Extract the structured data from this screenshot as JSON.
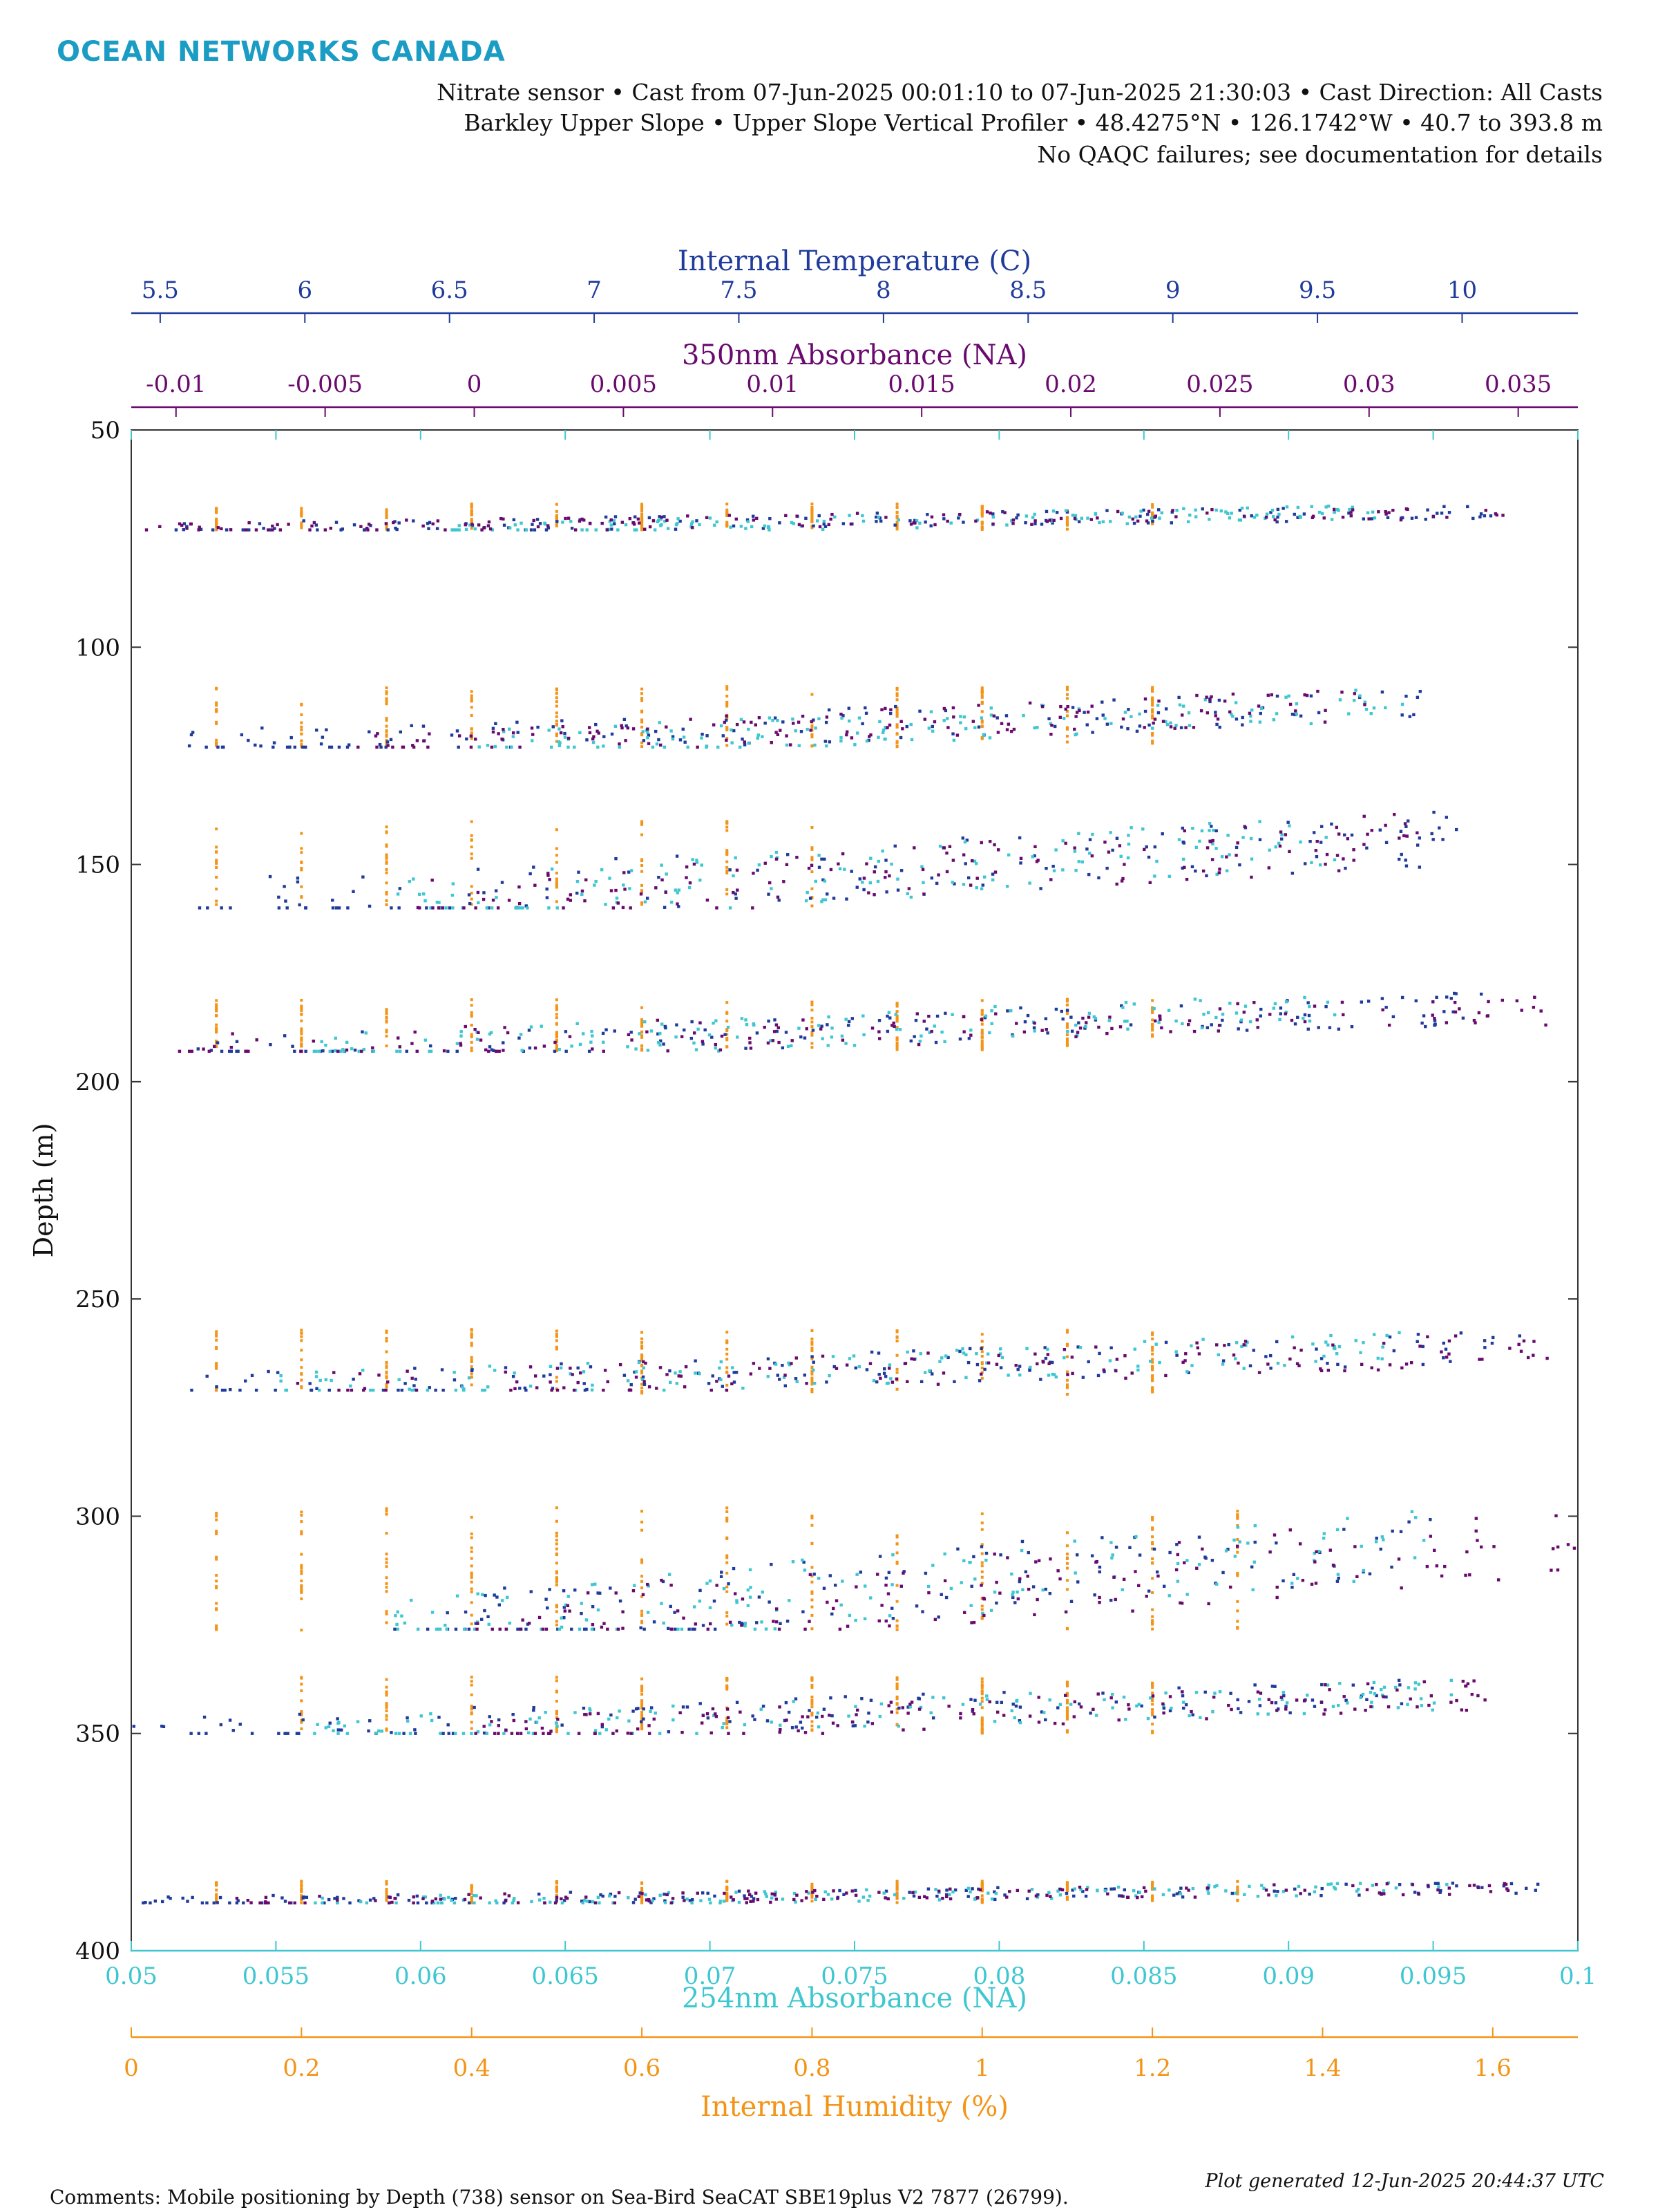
{
  "header": {
    "brand": "OCEAN NETWORKS CANADA",
    "line1": "Nitrate sensor • Cast from 07-Jun-2025 00:01:10 to 07-Jun-2025 21:30:03 • Cast Direction: All Casts",
    "line2": "Barkley Upper Slope • Upper Slope Vertical Profiler • 48.4275°N • 126.1742°W • 40.7 to 393.8 m",
    "line3": "No QAQC failures; see documentation for details"
  },
  "footer": {
    "comment": "Comments: Mobile positioning by Depth (738) sensor on Sea-Bird SeaCAT SBE19plus V2 7877 (26799).",
    "generated": "Plot generated 12-Jun-2025 20:44:37 UTC"
  },
  "colors": {
    "temperature": "#1f3b9b",
    "abs350": "#6a0a6e",
    "abs254": "#3ec7d1",
    "humidity": "#f39417",
    "axis": "#333333"
  },
  "chart_data": {
    "type": "scatter",
    "ylabel": "Depth (m)",
    "ylim": [
      50,
      400
    ],
    "y_reversed": true,
    "yticks": [
      50,
      100,
      150,
      200,
      250,
      300,
      350,
      400
    ],
    "axes": {
      "temperature": {
        "label": "Internal Temperature (C)",
        "position": "top-1",
        "lim": [
          5.4,
          10.4
        ],
        "ticks": [
          5.5,
          6,
          6.5,
          7,
          7.5,
          8,
          8.5,
          9,
          9.5,
          10
        ],
        "ticklabels": [
          "5.5",
          "6",
          "6.5",
          "7",
          "7.5",
          "8",
          "8.5",
          "9",
          "9.5",
          "10"
        ]
      },
      "abs350": {
        "label": "350nm Absorbance (NA)",
        "position": "top-2",
        "lim": [
          -0.0115,
          0.037
        ],
        "ticks": [
          -0.01,
          -0.005,
          0,
          0.005,
          0.01,
          0.015,
          0.02,
          0.025,
          0.03,
          0.035
        ],
        "ticklabels": [
          "-0.01",
          "-0.005",
          "0",
          "0.005",
          "0.01",
          "0.015",
          "0.02",
          "0.025",
          "0.03",
          "0.035"
        ]
      },
      "abs254": {
        "label": "254nm Absorbance (NA)",
        "position": "bottom-1",
        "lim": [
          0.05,
          0.1
        ],
        "ticks": [
          0.05,
          0.055,
          0.06,
          0.065,
          0.07,
          0.075,
          0.08,
          0.085,
          0.09,
          0.095,
          0.1
        ],
        "ticklabels": [
          "0.05",
          "0.055",
          "0.06",
          "0.065",
          "0.07",
          "0.075",
          "0.08",
          "0.085",
          "0.09",
          "0.095",
          "0.1"
        ]
      },
      "humidity": {
        "label": "Internal Humidity (%)",
        "position": "bottom-2",
        "lim": [
          0,
          1.7
        ],
        "ticks": [
          0,
          0.2,
          0.4,
          0.6,
          0.8,
          1,
          1.2,
          1.4,
          1.6
        ],
        "ticklabels": [
          "0",
          "0.2",
          "0.4",
          "0.6",
          "0.8",
          "1",
          "1.2",
          "1.4",
          "1.6"
        ]
      }
    },
    "series": [
      {
        "name": "Internal Temperature (C)",
        "axis": "temperature",
        "casts": [
          {
            "depth": [
              67,
              73
            ],
            "x": [
              5.5,
              10.2
            ]
          },
          {
            "depth": [
              109,
              123
            ],
            "x": [
              5.6,
              9.9
            ]
          },
          {
            "depth": [
              137,
              160
            ],
            "x": [
              5.6,
              10.0
            ]
          },
          {
            "depth": [
              179,
              193
            ],
            "x": [
              5.6,
              10.1
            ]
          },
          {
            "depth": [
              257,
              271
            ],
            "x": [
              5.6,
              10.2
            ]
          },
          {
            "depth": [
              297,
              326
            ],
            "x": [
              6.3,
              9.9
            ]
          },
          {
            "depth": [
              337,
              350
            ],
            "x": [
              5.4,
              9.8
            ]
          },
          {
            "depth": [
              384,
              389
            ],
            "x": [
              5.4,
              10.3
            ]
          }
        ]
      },
      {
        "name": "350nm Absorbance (NA)",
        "axis": "abs350",
        "casts": [
          {
            "depth": [
              67,
              73
            ],
            "x": [
              -0.011,
              0.035
            ]
          },
          {
            "depth": [
              109,
              123
            ],
            "x": [
              -0.004,
              0.03
            ]
          },
          {
            "depth": [
              137,
              160
            ],
            "x": [
              -0.002,
              0.032
            ]
          },
          {
            "depth": [
              179,
              193
            ],
            "x": [
              -0.01,
              0.036
            ]
          },
          {
            "depth": [
              257,
              271
            ],
            "x": [
              -0.006,
              0.036
            ]
          },
          {
            "depth": [
              297,
              326
            ],
            "x": [
              0.0,
              0.037
            ]
          },
          {
            "depth": [
              337,
              350
            ],
            "x": [
              0.0,
              0.034
            ]
          },
          {
            "depth": [
              384,
              389
            ],
            "x": [
              -0.008,
              0.035
            ]
          }
        ]
      },
      {
        "name": "254nm Absorbance (NA)",
        "axis": "abs254",
        "casts": [
          {
            "depth": [
              67,
              73
            ],
            "x": [
              0.061,
              0.093
            ]
          },
          {
            "depth": [
              109,
              123
            ],
            "x": [
              0.062,
              0.094
            ]
          },
          {
            "depth": [
              137,
              160
            ],
            "x": [
              0.059,
              0.092
            ]
          },
          {
            "depth": [
              179,
              193
            ],
            "x": [
              0.056,
              0.092
            ]
          },
          {
            "depth": [
              257,
              271
            ],
            "x": [
              0.055,
              0.094
            ]
          },
          {
            "depth": [
              297,
              326
            ],
            "x": [
              0.059,
              0.095
            ]
          },
          {
            "depth": [
              337,
              350
            ],
            "x": [
              0.056,
              0.096
            ]
          },
          {
            "depth": [
              384,
              389
            ],
            "x": [
              0.056,
              0.096
            ]
          }
        ]
      },
      {
        "name": "Internal Humidity (%)",
        "axis": "humidity",
        "casts": [
          {
            "depth": [
              67,
              73
            ],
            "x": [
              0.1,
              1.2
            ]
          },
          {
            "depth": [
              109,
              123
            ],
            "x": [
              0.1,
              1.2
            ]
          },
          {
            "depth": [
              140,
              160
            ],
            "x": [
              0.1,
              0.8
            ]
          },
          {
            "depth": [
              181,
              193
            ],
            "x": [
              0.1,
              1.2
            ]
          },
          {
            "depth": [
              257,
              272
            ],
            "x": [
              0.1,
              1.2
            ]
          },
          {
            "depth": [
              298,
              327
            ],
            "x": [
              0.1,
              1.3
            ]
          },
          {
            "depth": [
              337,
              350
            ],
            "x": [
              0.2,
              1.2
            ]
          },
          {
            "depth": [
              384,
              389
            ],
            "x": [
              0.1,
              1.3
            ]
          }
        ]
      }
    ]
  }
}
